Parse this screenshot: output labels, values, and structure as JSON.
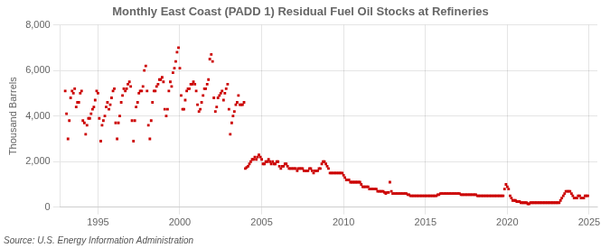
{
  "chart_data": {
    "type": "scatter",
    "title": "Monthly East Coast (PADD 1) Residual Fuel Oil Stocks at Refineries",
    "ylabel": "Thousand Barrels",
    "annotations": [
      "Source: U.S. Energy Information Administration"
    ],
    "color": "#cc0000",
    "marker": "square",
    "grid": true,
    "xlim": [
      1992.7,
      2025.5
    ],
    "xticks": [
      1995,
      2000,
      2005,
      2010,
      2015,
      2020,
      2025
    ],
    "ylim": [
      0,
      8000
    ],
    "yticks": [
      0,
      {
        "value": 2000,
        "label": "2,000"
      },
      {
        "value": 4000,
        "label": "4,000"
      },
      {
        "value": 6000,
        "label": "6,000"
      },
      {
        "value": 8000,
        "label": "8,000"
      }
    ],
    "x": [
      1993.0,
      1993.08,
      1993.17,
      1993.25,
      1993.33,
      1993.42,
      1993.5,
      1993.58,
      1993.67,
      1993.75,
      1993.83,
      1993.92,
      1994.0,
      1994.08,
      1994.17,
      1994.25,
      1994.33,
      1994.42,
      1994.5,
      1994.58,
      1994.67,
      1994.75,
      1994.83,
      1994.92,
      1995.0,
      1995.08,
      1995.17,
      1995.25,
      1995.33,
      1995.42,
      1995.5,
      1995.58,
      1995.67,
      1995.75,
      1995.83,
      1995.92,
      1996.0,
      1996.08,
      1996.17,
      1996.25,
      1996.33,
      1996.42,
      1996.5,
      1996.58,
      1996.67,
      1996.75,
      1996.83,
      1996.92,
      1997.0,
      1997.08,
      1997.17,
      1997.25,
      1997.33,
      1997.42,
      1997.5,
      1997.58,
      1997.67,
      1997.75,
      1997.83,
      1997.92,
      1998.0,
      1998.08,
      1998.17,
      1998.25,
      1998.33,
      1998.42,
      1998.5,
      1998.58,
      1998.67,
      1998.75,
      1998.83,
      1998.92,
      1999.0,
      1999.08,
      1999.17,
      1999.25,
      1999.33,
      1999.42,
      1999.5,
      1999.58,
      1999.67,
      1999.75,
      1999.83,
      1999.92,
      2000.0,
      2000.08,
      2000.17,
      2000.25,
      2000.33,
      2000.42,
      2000.5,
      2000.58,
      2000.67,
      2000.75,
      2000.83,
      2000.92,
      2001.0,
      2001.08,
      2001.17,
      2001.25,
      2001.33,
      2001.42,
      2001.5,
      2001.58,
      2001.67,
      2001.75,
      2001.83,
      2001.92,
      2002.0,
      2002.08,
      2002.17,
      2002.25,
      2002.33,
      2002.42,
      2002.5,
      2002.58,
      2002.67,
      2002.75,
      2002.83,
      2002.92,
      2003.0,
      2003.08,
      2003.17,
      2003.25,
      2003.33,
      2003.42,
      2003.5,
      2003.58,
      2003.67,
      2003.75,
      2003.83,
      2003.92,
      2004.0,
      2004.08,
      2004.17,
      2004.25,
      2004.33,
      2004.42,
      2004.5,
      2004.58,
      2004.67,
      2004.75,
      2004.83,
      2004.92,
      2005.0,
      2005.08,
      2005.17,
      2005.25,
      2005.33,
      2005.42,
      2005.5,
      2005.58,
      2005.67,
      2005.75,
      2005.83,
      2005.92,
      2006.0,
      2006.08,
      2006.17,
      2006.25,
      2006.33,
      2006.42,
      2006.5,
      2006.58,
      2006.67,
      2006.75,
      2006.83,
      2006.92,
      2007.0,
      2007.08,
      2007.17,
      2007.25,
      2007.33,
      2007.42,
      2007.5,
      2007.58,
      2007.67,
      2007.75,
      2007.83,
      2007.92,
      2008.0,
      2008.08,
      2008.17,
      2008.25,
      2008.33,
      2008.42,
      2008.5,
      2008.58,
      2008.67,
      2008.75,
      2008.83,
      2008.92,
      2009.0,
      2009.08,
      2009.17,
      2009.25,
      2009.33,
      2009.42,
      2009.5,
      2009.58,
      2009.67,
      2009.75,
      2009.83,
      2009.92,
      2010.0,
      2010.08,
      2010.17,
      2010.25,
      2010.33,
      2010.42,
      2010.5,
      2010.58,
      2010.67,
      2010.75,
      2010.83,
      2010.92,
      2011.0,
      2011.08,
      2011.17,
      2011.25,
      2011.33,
      2011.42,
      2011.5,
      2011.58,
      2011.67,
      2011.75,
      2011.83,
      2011.92,
      2012.0,
      2012.08,
      2012.17,
      2012.25,
      2012.33,
      2012.42,
      2012.5,
      2012.58,
      2012.67,
      2012.75,
      2012.83,
      2012.92,
      2013.0,
      2013.08,
      2013.17,
      2013.25,
      2013.33,
      2013.42,
      2013.5,
      2013.58,
      2013.67,
      2013.75,
      2013.83,
      2013.92,
      2014.0,
      2014.08,
      2014.17,
      2014.25,
      2014.33,
      2014.42,
      2014.5,
      2014.58,
      2014.67,
      2014.75,
      2014.83,
      2014.92,
      2015.0,
      2015.08,
      2015.17,
      2015.25,
      2015.33,
      2015.42,
      2015.5,
      2015.58,
      2015.67,
      2015.75,
      2015.83,
      2015.92,
      2016.0,
      2016.08,
      2016.17,
      2016.25,
      2016.33,
      2016.42,
      2016.5,
      2016.58,
      2016.67,
      2016.75,
      2016.83,
      2016.92,
      2017.0,
      2017.08,
      2017.17,
      2017.25,
      2017.33,
      2017.42,
      2017.5,
      2017.58,
      2017.67,
      2017.75,
      2017.83,
      2017.92,
      2018.0,
      2018.08,
      2018.17,
      2018.25,
      2018.33,
      2018.42,
      2018.5,
      2018.58,
      2018.67,
      2018.75,
      2018.83,
      2018.92,
      2019.0,
      2019.08,
      2019.17,
      2019.25,
      2019.33,
      2019.42,
      2019.5,
      2019.58,
      2019.67,
      2019.75,
      2019.83,
      2019.92,
      2020.0,
      2020.08,
      2020.17,
      2020.25,
      2020.33,
      2020.42,
      2020.5,
      2020.58,
      2020.67,
      2020.75,
      2020.83,
      2020.92,
      2021.0,
      2021.08,
      2021.17,
      2021.25,
      2021.33,
      2021.42,
      2021.5,
      2021.58,
      2021.67,
      2021.75,
      2021.83,
      2021.92,
      2022.0,
      2022.08,
      2022.17,
      2022.25,
      2022.33,
      2022.42,
      2022.5,
      2022.58,
      2022.67,
      2022.75,
      2022.83,
      2022.92,
      2023.0,
      2023.08,
      2023.17,
      2023.25,
      2023.33,
      2023.42,
      2023.5,
      2023.58,
      2023.67,
      2023.75,
      2023.83,
      2023.92,
      2024.0,
      2024.08,
      2024.17,
      2024.25,
      2024.33,
      2024.42,
      2024.5,
      2024.58,
      2024.67,
      2024.75,
      2024.83,
      2024.92
    ],
    "values": [
      5100,
      4100,
      3000,
      3800,
      4800,
      5100,
      5000,
      5200,
      4400,
      4600,
      4600,
      5000,
      5100,
      3800,
      3700,
      3200,
      3600,
      3900,
      3900,
      4100,
      4300,
      4400,
      4700,
      5100,
      5000,
      3900,
      2900,
      3600,
      3800,
      4000,
      4400,
      4600,
      4300,
      4500,
      4800,
      5100,
      5200,
      3700,
      3000,
      3700,
      4000,
      4600,
      4900,
      5200,
      5100,
      5200,
      5400,
      5500,
      5300,
      3800,
      2900,
      3800,
      4400,
      4600,
      5000,
      5100,
      5100,
      5300,
      6000,
      6200,
      5100,
      3600,
      3000,
      3800,
      4600,
      5100,
      5100,
      5300,
      5400,
      5600,
      5600,
      5700,
      5500,
      4300,
      4000,
      4300,
      5100,
      5500,
      5300,
      5900,
      6100,
      6400,
      6800,
      7000,
      6100,
      4900,
      4300,
      4300,
      4700,
      5100,
      5200,
      5200,
      5400,
      5400,
      5500,
      5400,
      5100,
      4500,
      4200,
      4300,
      4600,
      4900,
      5200,
      5200,
      5400,
      5600,
      6500,
      6700,
      6400,
      4800,
      4200,
      4400,
      4800,
      4900,
      5000,
      5100,
      4700,
      5000,
      5200,
      5400,
      4300,
      3200,
      3700,
      4000,
      4200,
      4500,
      4600,
      4900,
      4500,
      4500,
      4500,
      4600,
      1700,
      1750,
      1800,
      1900,
      2000,
      2100,
      2100,
      2200,
      2100,
      2200,
      2300,
      2200,
      2100,
      1900,
      1900,
      2000,
      2000,
      2100,
      2000,
      1900,
      2000,
      1900,
      1900,
      2000,
      2000,
      1800,
      1700,
      1800,
      1800,
      1900,
      1900,
      1800,
      1700,
      1700,
      1700,
      1700,
      1700,
      1700,
      1600,
      1700,
      1700,
      1700,
      1700,
      1600,
      1600,
      1600,
      1600,
      1700,
      1700,
      1600,
      1500,
      1600,
      1600,
      1600,
      1700,
      1700,
      1900,
      2000,
      2000,
      1900,
      1800,
      1700,
      1500,
      1500,
      1500,
      1500,
      1500,
      1500,
      1500,
      1500,
      1500,
      1500,
      1400,
      1300,
      1200,
      1200,
      1200,
      1100,
      1100,
      1100,
      1100,
      1100,
      1100,
      1100,
      1100,
      1000,
      900,
      900,
      900,
      900,
      900,
      800,
      800,
      800,
      800,
      800,
      800,
      700,
      700,
      700,
      700,
      700,
      650,
      600,
      650,
      650,
      1100,
      700,
      600,
      600,
      600,
      600,
      600,
      600,
      600,
      600,
      600,
      600,
      600,
      550,
      550,
      500,
      500,
      500,
      500,
      500,
      500,
      500,
      500,
      500,
      500,
      500,
      500,
      500,
      500,
      500,
      500,
      500,
      500,
      500,
      500,
      550,
      550,
      600,
      600,
      600,
      600,
      600,
      600,
      600,
      600,
      600,
      600,
      600,
      600,
      600,
      600,
      600,
      550,
      550,
      550,
      550,
      550,
      550,
      550,
      550,
      550,
      550,
      550,
      550,
      500,
      500,
      500,
      500,
      500,
      500,
      500,
      500,
      500,
      500,
      500,
      500,
      500,
      500,
      500,
      500,
      500,
      500,
      500,
      500,
      800,
      1000,
      900,
      800,
      500,
      400,
      300,
      300,
      300,
      250,
      250,
      250,
      200,
      200,
      200,
      200,
      200,
      150,
      150,
      200,
      200,
      200,
      200,
      200,
      200,
      200,
      200,
      200,
      200,
      200,
      200,
      200,
      200,
      200,
      200,
      200,
      200,
      200,
      200,
      200,
      200,
      300,
      400,
      500,
      600,
      700,
      700,
      700,
      700,
      600,
      500,
      400,
      400,
      400,
      500,
      500,
      400,
      400,
      400,
      500,
      500,
      500
    ]
  }
}
